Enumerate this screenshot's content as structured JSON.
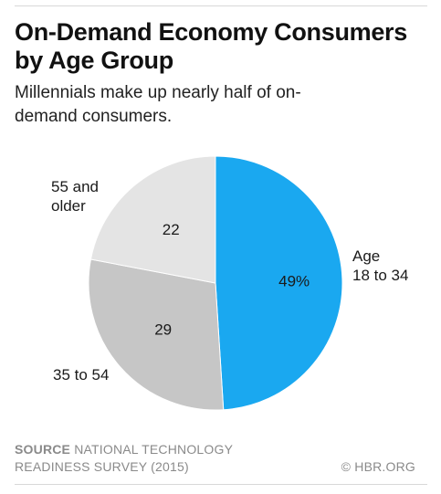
{
  "header": {
    "title": "On-Demand Economy Consumers by Age Group",
    "subtitle": "Millennials make up nearly half of on-demand consumers."
  },
  "chart_data": {
    "type": "pie",
    "categories": [
      "Age 18 to 34",
      "35 to 54",
      "55 and older"
    ],
    "values": [
      49,
      29,
      22
    ],
    "value_labels": [
      "49%",
      "29",
      "22"
    ],
    "label_lines": [
      [
        "Age",
        "18 to 34"
      ],
      [
        "35 to 54"
      ],
      [
        "55 and",
        "older"
      ]
    ],
    "colors": [
      "#1aa8f0",
      "#c6c6c6",
      "#e4e4e4"
    ],
    "start": "12 o'clock, clockwise"
  },
  "footer": {
    "source_keyword": "SOURCE",
    "source_text": "NATIONAL TECHNOLOGY READINESS SURVEY (2015)",
    "credit": "© HBR.ORG"
  }
}
